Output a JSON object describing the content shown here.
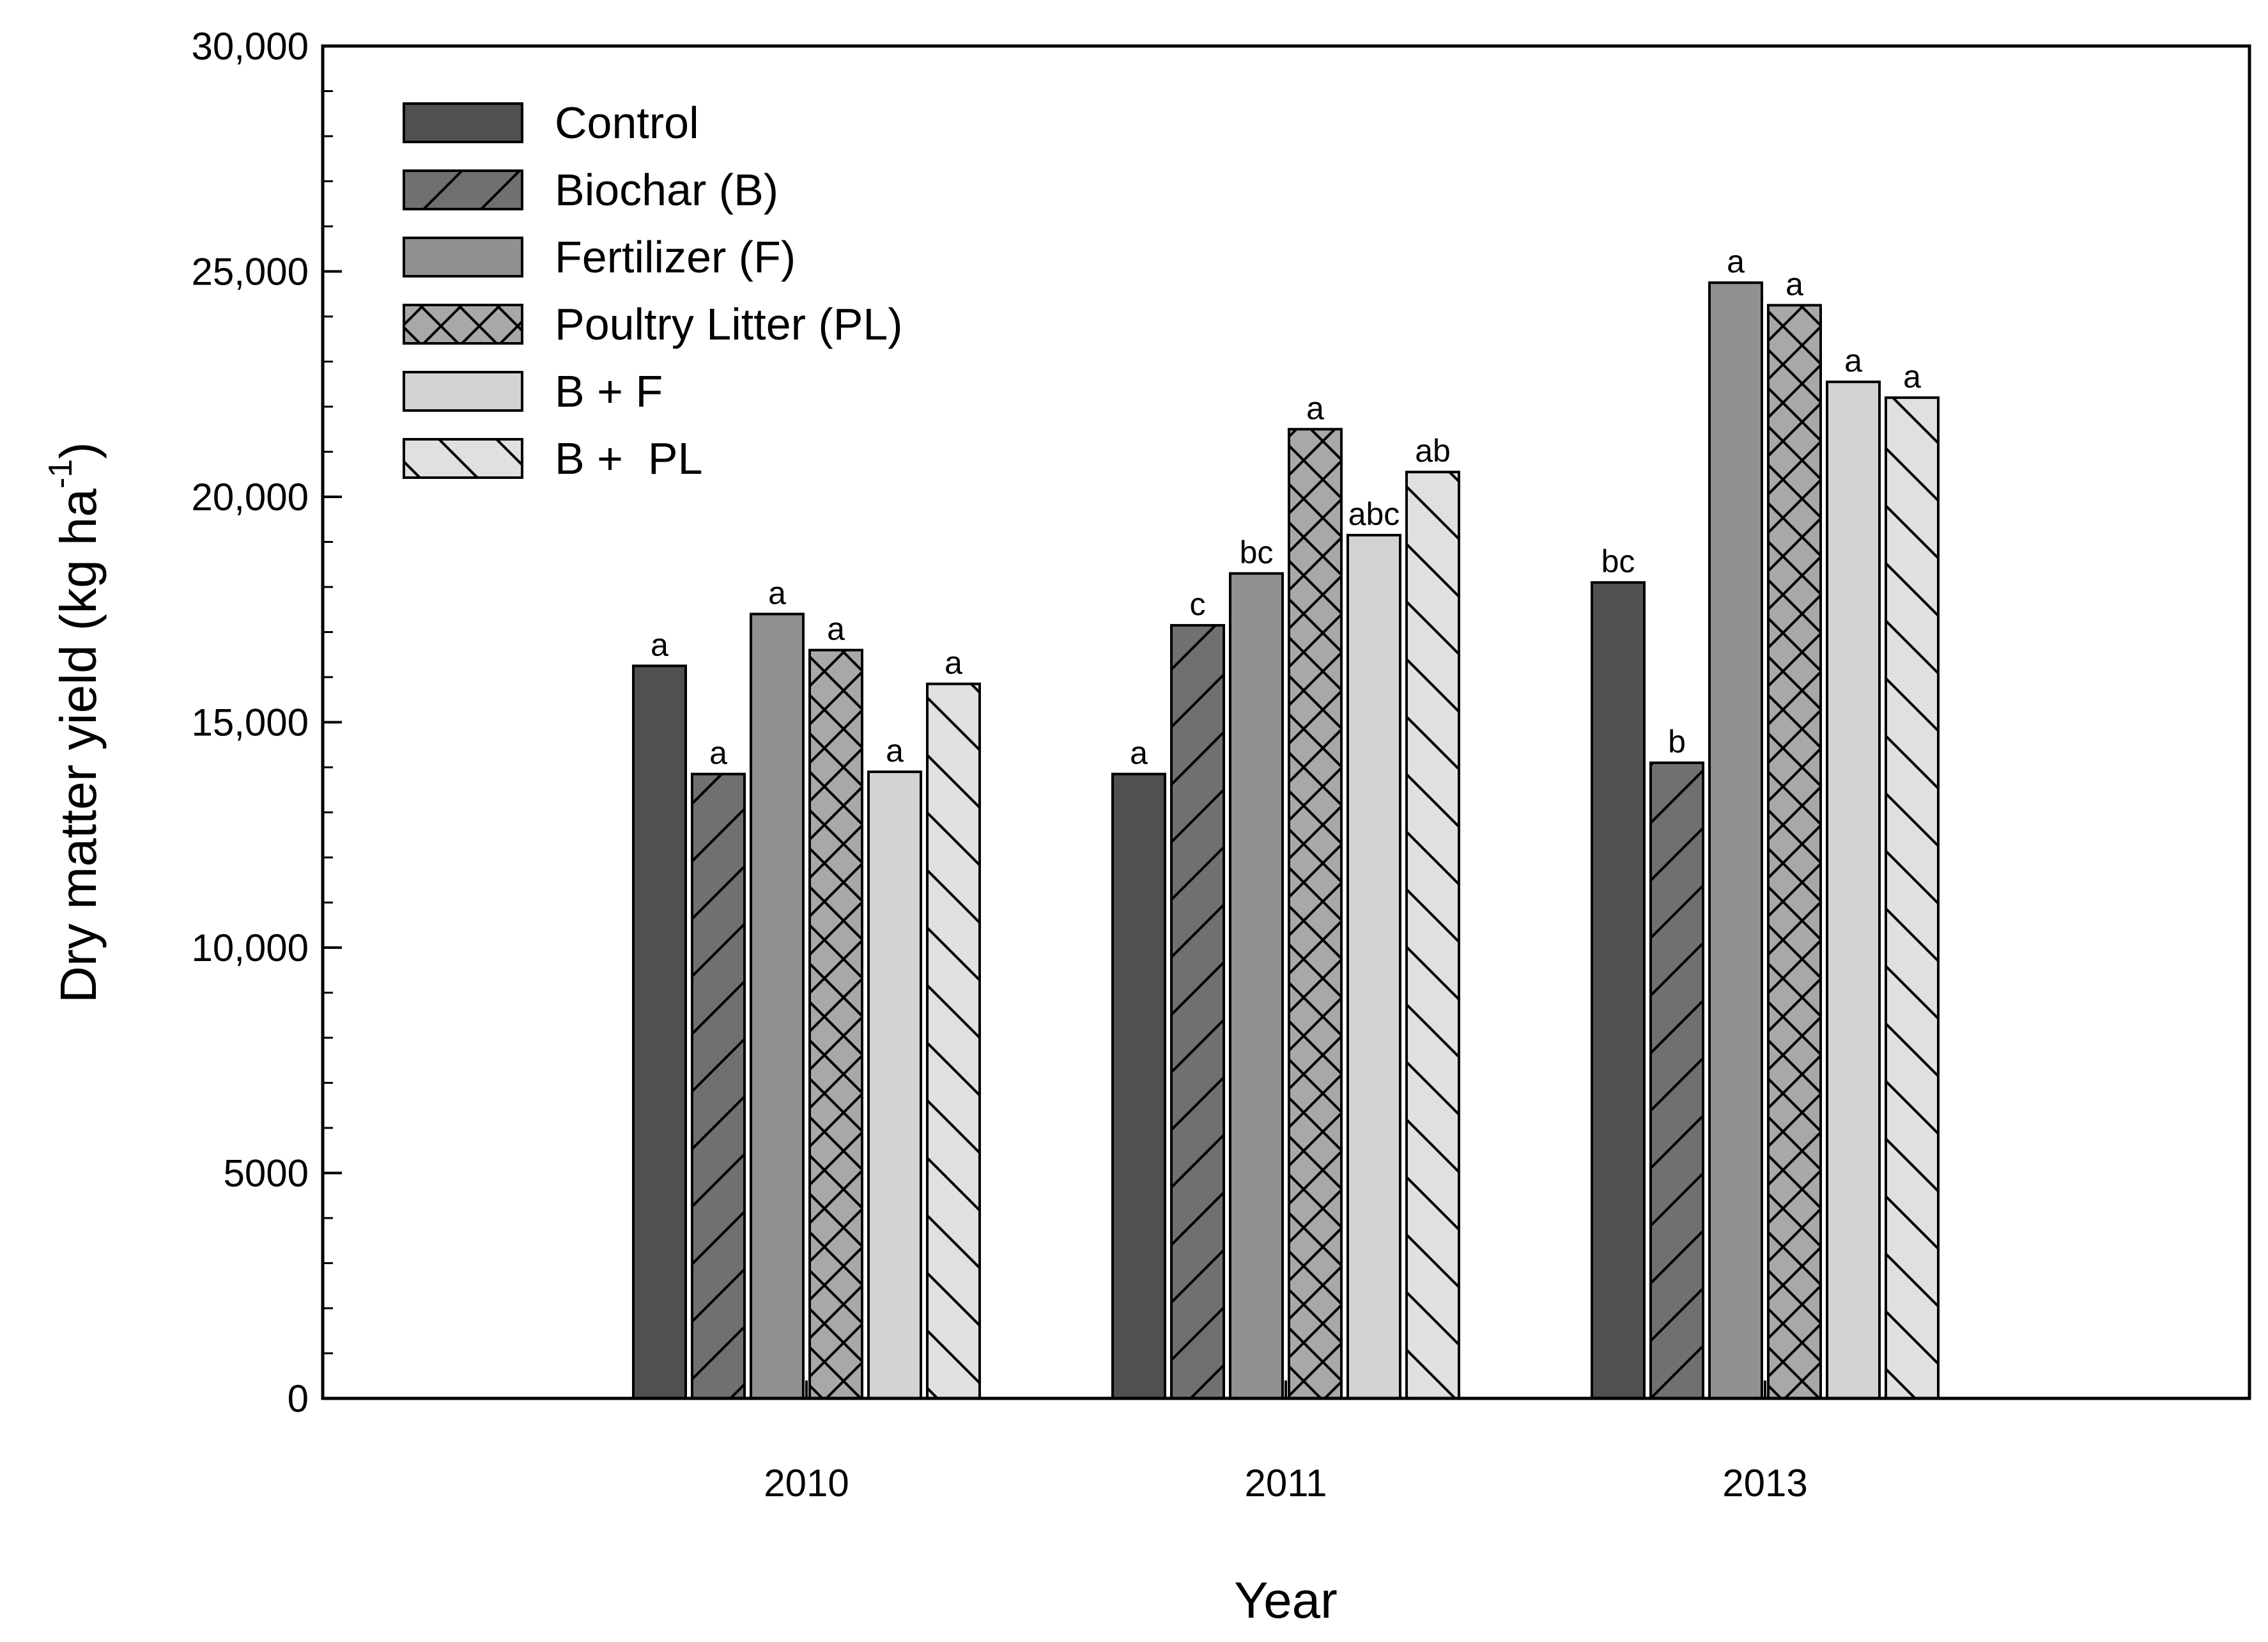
{
  "chart_data": {
    "type": "bar",
    "title": "",
    "xlabel": "Year",
    "ylabel": "Dry matter yield (kg ha",
    "ylabel_sup": "-1",
    "ylabel_close": ")",
    "ylim": [
      0,
      30000
    ],
    "yticks": [
      {
        "value": 0,
        "label": "0"
      },
      {
        "value": 5000,
        "label": "5000"
      },
      {
        "value": 10000,
        "label": "10,000"
      },
      {
        "value": 15000,
        "label": "15,000"
      },
      {
        "value": 20000,
        "label": "20,000"
      },
      {
        "value": 25000,
        "label": "25,000"
      },
      {
        "value": 30000,
        "label": "30,000"
      }
    ],
    "categories": [
      "2010",
      "2011",
      "2013"
    ],
    "legend_position": "top-left",
    "series": [
      {
        "name": "Control",
        "fill": "#505050",
        "pattern": "none",
        "values": [
          16250,
          13850,
          18100
        ],
        "letters": [
          "a",
          "a",
          "bc"
        ]
      },
      {
        "name": "Biochar (B)",
        "fill": "#707070",
        "pattern": "forward-diagonal",
        "values": [
          13850,
          17150,
          14100
        ],
        "letters": [
          "a",
          "c",
          "b"
        ]
      },
      {
        "name": "Fertilizer (F)",
        "fill": "#909090",
        "pattern": "none",
        "values": [
          17400,
          18300,
          24750
        ],
        "letters": [
          "a",
          "bc",
          "a"
        ]
      },
      {
        "name": "Poultry Litter (PL)",
        "fill": "#a8a8a8",
        "pattern": "crosshatch",
        "values": [
          16600,
          21500,
          24250
        ],
        "letters": [
          "a",
          "a",
          "a"
        ]
      },
      {
        "name": "B + F",
        "fill": "#d3d3d3",
        "pattern": "none",
        "values": [
          13900,
          19150,
          22550
        ],
        "letters": [
          "a",
          "abc",
          "a"
        ]
      },
      {
        "name": "B +  PL",
        "fill": "#e0e0e0",
        "pattern": "back-diagonal",
        "values": [
          15850,
          20550,
          22200
        ],
        "letters": [
          "a",
          "ab",
          "a"
        ]
      }
    ]
  }
}
